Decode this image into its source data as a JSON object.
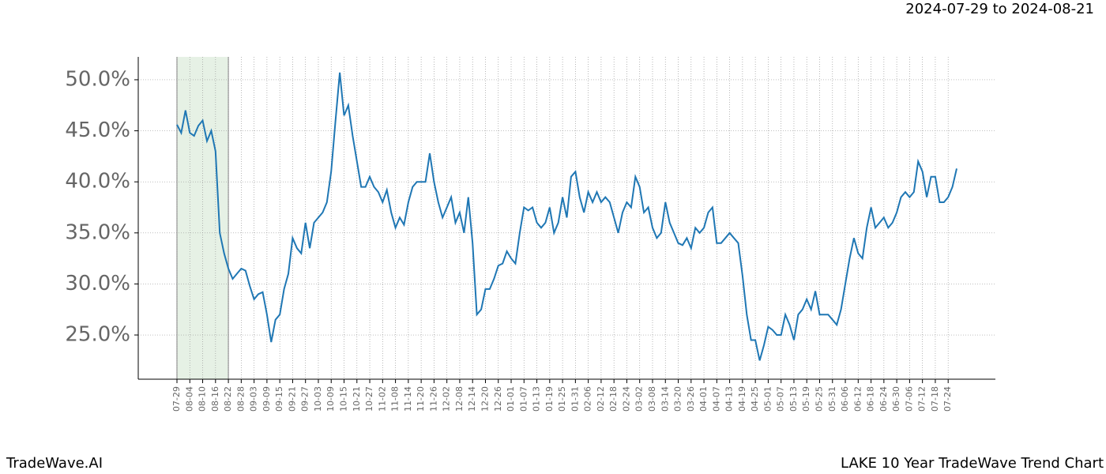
{
  "chart_data": {
    "type": "line",
    "title": "LAKE 10 Year TradeWave Trend Chart",
    "subtitle": "2024-07-29 to 2024-08-21",
    "brand": "TradeWave.AI",
    "shaded_range": [
      "07-29",
      "08-22"
    ],
    "shade_color": "#d5e8d4",
    "grid": true,
    "categories": [
      "07-29",
      null,
      null,
      "08-04",
      null,
      null,
      "08-10",
      null,
      null,
      "08-16",
      null,
      null,
      "08-22",
      null,
      null,
      "08-28",
      null,
      null,
      "09-03",
      null,
      null,
      "09-09",
      null,
      null,
      "09-15",
      null,
      null,
      "09-21",
      null,
      null,
      "09-27",
      null,
      null,
      "10-03",
      null,
      null,
      "10-09",
      null,
      null,
      "10-15",
      null,
      null,
      "10-21",
      null,
      null,
      "10-27",
      null,
      null,
      "11-02",
      null,
      null,
      "11-08",
      null,
      null,
      "11-14",
      null,
      null,
      "11-20",
      null,
      null,
      "11-26",
      null,
      null,
      "12-02",
      null,
      null,
      "12-08",
      null,
      null,
      "12-14",
      null,
      null,
      "12-20",
      null,
      null,
      "12-26",
      null,
      null,
      "01-01",
      null,
      null,
      "01-07",
      null,
      null,
      "01-13",
      null,
      null,
      "01-19",
      null,
      null,
      "01-25",
      null,
      null,
      "01-31",
      null,
      null,
      "02-06",
      null,
      null,
      "02-12",
      null,
      null,
      "02-18",
      null,
      null,
      "02-24",
      null,
      null,
      "03-02",
      null,
      null,
      "03-08",
      null,
      null,
      "03-14",
      null,
      null,
      "03-20",
      null,
      null,
      "03-26",
      null,
      null,
      "04-01",
      null,
      null,
      "04-07",
      null,
      null,
      "04-13",
      null,
      null,
      "04-19",
      null,
      null,
      "04-25",
      null,
      null,
      "05-01",
      null,
      null,
      "05-07",
      null,
      null,
      "05-13",
      null,
      null,
      "05-19",
      null,
      null,
      "05-25",
      null,
      null,
      "05-31",
      null,
      null,
      "06-06",
      null,
      null,
      "06-12",
      null,
      null,
      "06-18",
      null,
      null,
      "06-24",
      null,
      null,
      "06-30",
      null,
      null,
      "07-06",
      null,
      null,
      "07-12",
      null,
      null,
      "07-18",
      null,
      null,
      "07-24",
      null,
      null
    ],
    "series": [
      {
        "name": "LAKE",
        "color": "#1f77b4",
        "values": [
          45.6,
          44.8,
          47.0,
          44.8,
          44.5,
          45.5,
          46.0,
          44.0,
          45.0,
          43.0,
          35.0,
          33.0,
          31.5,
          30.5,
          31.0,
          31.5,
          31.3,
          29.8,
          28.5,
          29.0,
          29.2,
          27.0,
          24.3,
          26.5,
          27.0,
          29.5,
          31.0,
          34.5,
          33.5,
          33.0,
          36.0,
          33.5,
          36.0,
          36.5,
          37.0,
          38.0,
          41.0,
          46.0,
          50.7,
          46.5,
          47.5,
          44.5,
          42.0,
          39.5,
          39.5,
          40.5,
          39.5,
          39.0,
          38.0,
          39.2,
          37.0,
          35.5,
          36.5,
          35.8,
          38.0,
          39.5,
          40.0,
          40.0,
          40.0,
          42.8,
          40.0,
          38.0,
          36.5,
          37.5,
          38.5,
          36.0,
          37.0,
          35.0,
          38.5,
          34.0,
          27.0,
          27.5,
          29.5,
          29.5,
          30.5,
          31.8,
          32.0,
          33.2,
          32.5,
          32.0,
          35.0,
          37.5,
          37.2,
          37.5,
          36.0,
          35.5,
          36.0,
          37.5,
          35.0,
          36.0,
          38.5,
          36.5,
          40.5,
          41.0,
          38.5,
          37.0,
          39.0,
          38.0,
          39.0,
          38.0,
          38.5,
          38.0,
          36.5,
          35.0,
          37.0,
          38.0,
          37.5,
          40.5,
          39.5,
          37.0,
          37.5,
          35.5,
          34.5,
          35.0,
          38.0,
          36.0,
          35.0,
          34.0,
          33.8,
          34.5,
          33.5,
          35.5,
          35.0,
          35.5,
          37.0,
          37.5,
          34.0,
          34.0,
          34.5,
          35.0,
          34.5,
          34.0,
          30.8,
          27.0,
          24.5,
          24.5,
          22.5,
          24.0,
          25.8,
          25.5,
          25.0,
          25.0,
          27.0,
          26.0,
          24.5,
          27.0,
          27.5,
          28.5,
          27.5,
          29.3,
          27.0,
          27.0,
          27.0,
          26.5,
          26.0,
          27.5,
          30.0,
          32.5,
          34.5,
          33.0,
          32.5,
          35.5,
          37.5,
          35.5,
          36.0,
          36.5,
          35.5,
          36.0,
          37.0,
          38.5,
          39.0,
          38.5,
          39.0,
          42.0,
          41.0,
          38.5,
          40.5,
          40.5,
          38.0,
          38.0,
          38.5,
          39.5,
          41.3
        ]
      }
    ],
    "ylim": [
      20.67,
      52.24
    ],
    "yticks": [
      {
        "value": 25,
        "label": "25.0%"
      },
      {
        "value": 30,
        "label": "30.0%"
      },
      {
        "value": 35,
        "label": "35.0%"
      },
      {
        "value": 40,
        "label": "40.0%"
      },
      {
        "value": 45,
        "label": "45.0%"
      },
      {
        "value": 50,
        "label": "50.0%"
      }
    ]
  }
}
